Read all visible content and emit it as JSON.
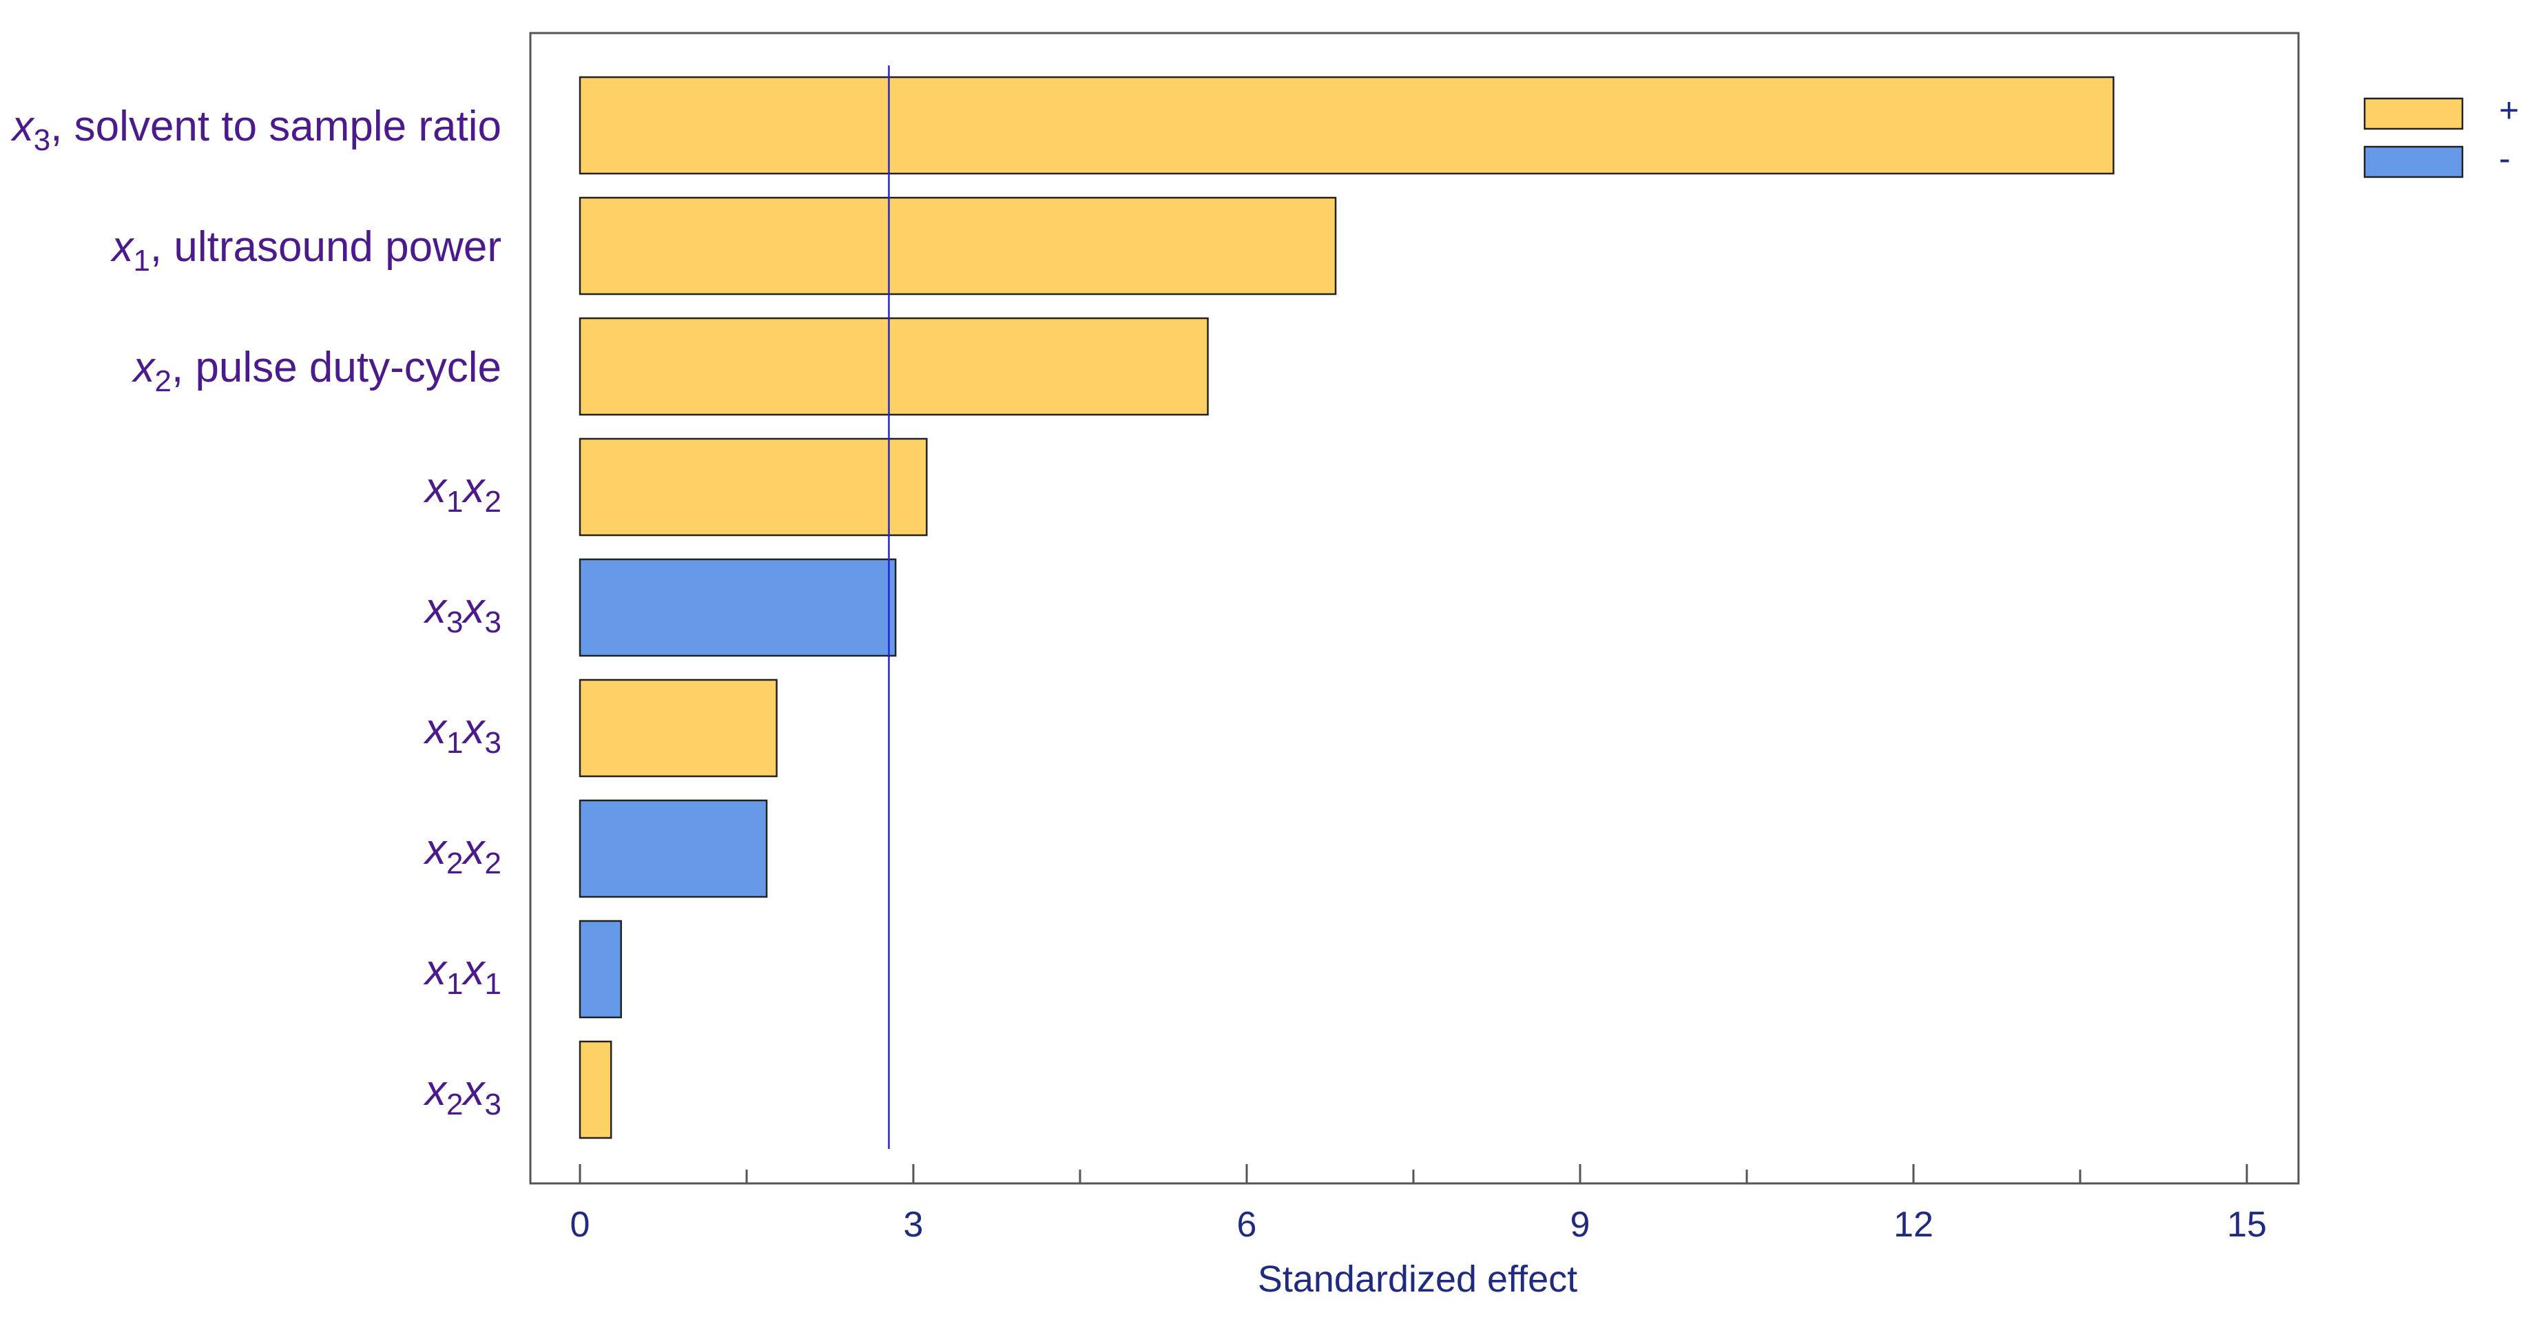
{
  "chart_data": {
    "type": "bar",
    "orientation": "horizontal",
    "title": "",
    "xlabel": "Standardized effect",
    "ylabel": "",
    "xlim": [
      0,
      15
    ],
    "xticks": [
      0,
      3,
      6,
      9,
      12,
      15
    ],
    "reference_line": 2.78,
    "grid": false,
    "legend_position": "top-right",
    "colors": {
      "positive": "#fdd166",
      "negative": "#6699e8",
      "reference": "#2222dd"
    },
    "legend": [
      {
        "sign": "positive",
        "label": "+"
      },
      {
        "sign": "negative",
        "label": "-"
      }
    ],
    "categories": [
      {
        "parts": [
          [
            "var",
            "x"
          ],
          [
            "sub",
            "3"
          ],
          [
            "txt",
            ", solvent to sample ratio"
          ]
        ],
        "value": 13.8,
        "sign": "positive"
      },
      {
        "parts": [
          [
            "var",
            "x"
          ],
          [
            "sub",
            "1"
          ],
          [
            "txt",
            ", ultrasound power"
          ]
        ],
        "value": 6.8,
        "sign": "positive"
      },
      {
        "parts": [
          [
            "var",
            "x"
          ],
          [
            "sub",
            "2"
          ],
          [
            "txt",
            ", pulse duty-cycle"
          ]
        ],
        "value": 5.65,
        "sign": "positive"
      },
      {
        "parts": [
          [
            "var",
            "x"
          ],
          [
            "sub",
            "1"
          ],
          [
            "var",
            "x"
          ],
          [
            "sub",
            "2"
          ]
        ],
        "value": 3.12,
        "sign": "positive"
      },
      {
        "parts": [
          [
            "var",
            "x"
          ],
          [
            "sub",
            "3"
          ],
          [
            "var",
            "x"
          ],
          [
            "sub",
            "3"
          ]
        ],
        "value": 2.84,
        "sign": "negative"
      },
      {
        "parts": [
          [
            "var",
            "x"
          ],
          [
            "sub",
            "1"
          ],
          [
            "var",
            "x"
          ],
          [
            "sub",
            "3"
          ]
        ],
        "value": 1.77,
        "sign": "positive"
      },
      {
        "parts": [
          [
            "var",
            "x"
          ],
          [
            "sub",
            "2"
          ],
          [
            "var",
            "x"
          ],
          [
            "sub",
            "2"
          ]
        ],
        "value": 1.68,
        "sign": "negative"
      },
      {
        "parts": [
          [
            "var",
            "x"
          ],
          [
            "sub",
            "1"
          ],
          [
            "var",
            "x"
          ],
          [
            "sub",
            "1"
          ]
        ],
        "value": 0.37,
        "sign": "negative"
      },
      {
        "parts": [
          [
            "var",
            "x"
          ],
          [
            "sub",
            "2"
          ],
          [
            "var",
            "x"
          ],
          [
            "sub",
            "3"
          ]
        ],
        "value": 0.28,
        "sign": "positive"
      }
    ]
  }
}
